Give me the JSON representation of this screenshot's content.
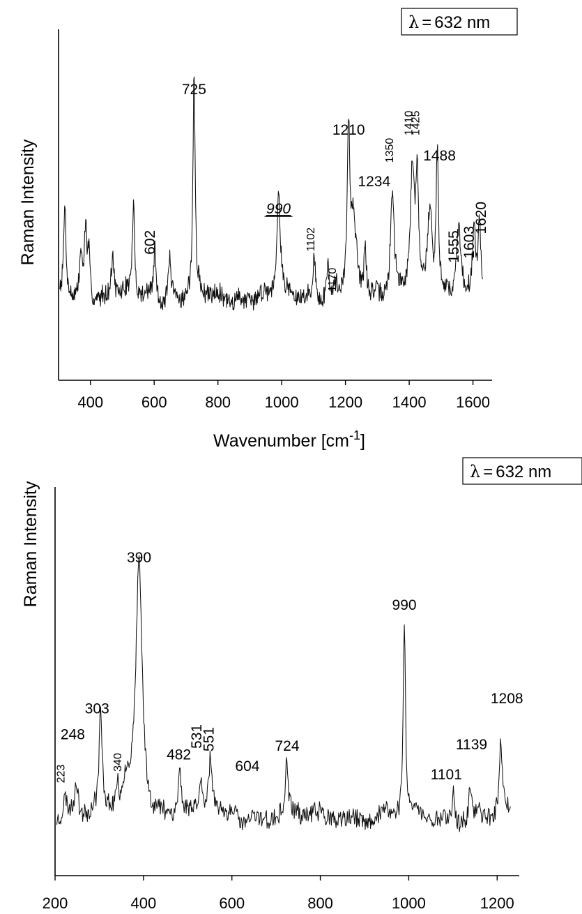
{
  "chart_data": [
    {
      "type": "line",
      "title": "",
      "ylabel": "Raman Intensity",
      "xlabel": "Wavenumber [cm",
      "xlabel_sup": "-1",
      "xlabel_close": "]",
      "xlim": [
        300,
        1660
      ],
      "ylim": [
        0,
        1
      ],
      "grid": false,
      "legend": "none",
      "x_ticks": [
        400,
        600,
        800,
        1000,
        1200,
        1400,
        1600
      ],
      "x_tick_labels": [
        "400",
        "600",
        "800",
        "1000",
        "1200",
        "1400",
        "1600"
      ],
      "box_label": {
        "lambda": "λ",
        "equals": "=",
        "value": "632 nm"
      },
      "baseline": 0.2,
      "noise": 0.04,
      "peaks": [
        {
          "x": 320,
          "h": 0.33,
          "w": 4
        },
        {
          "x": 370,
          "h": 0.14,
          "w": 4
        },
        {
          "x": 385,
          "h": 0.24,
          "w": 5
        },
        {
          "x": 395,
          "h": 0.15,
          "w": 4
        },
        {
          "x": 470,
          "h": 0.15,
          "w": 5
        },
        {
          "x": 535,
          "h": 0.31,
          "w": 4
        },
        {
          "x": 602,
          "h": 0.18,
          "w": 4
        },
        {
          "x": 648,
          "h": 0.14,
          "w": 4
        },
        {
          "x": 725,
          "h": 0.75,
          "w": 4
        },
        {
          "x": 990,
          "h": 0.37,
          "w": 6
        },
        {
          "x": 1102,
          "h": 0.18,
          "w": 4
        },
        {
          "x": 1145,
          "h": 0.11,
          "w": 4
        },
        {
          "x": 1170,
          "h": 0.04,
          "w": 4
        },
        {
          "x": 1210,
          "h": 0.58,
          "w": 5
        },
        {
          "x": 1224,
          "h": 0.22,
          "w": 6
        },
        {
          "x": 1234,
          "h": 0.1,
          "w": 6
        },
        {
          "x": 1262,
          "h": 0.17,
          "w": 4
        },
        {
          "x": 1347,
          "h": 0.38,
          "w": 7
        },
        {
          "x": 1410,
          "h": 0.45,
          "w": 8
        },
        {
          "x": 1425,
          "h": 0.39,
          "w": 4
        },
        {
          "x": 1465,
          "h": 0.29,
          "w": 8
        },
        {
          "x": 1488,
          "h": 0.48,
          "w": 4
        },
        {
          "x": 1555,
          "h": 0.27,
          "w": 8
        },
        {
          "x": 1603,
          "h": 0.25,
          "w": 5
        },
        {
          "x": 1620,
          "h": 0.26,
          "w": 6
        }
      ],
      "annotations": [
        {
          "text": "725",
          "x": 725,
          "y": 0.905,
          "rotate": 0,
          "size": "large",
          "underline": false,
          "italic": false
        },
        {
          "text": "602",
          "x": 602,
          "y": 0.39,
          "rotate": -90,
          "size": "large",
          "underline": false,
          "italic": false
        },
        {
          "text": "990",
          "x": 990,
          "y": 0.49,
          "rotate": 0,
          "size": "large",
          "underline": true,
          "italic": true
        },
        {
          "text": "1102",
          "x": 1102,
          "y": 0.4,
          "rotate": -90,
          "size": "small",
          "underline": false,
          "italic": false
        },
        {
          "text": "1170",
          "x": 1170,
          "y": 0.26,
          "rotate": -90,
          "size": "small",
          "underline": false,
          "italic": false
        },
        {
          "text": "1210",
          "x": 1210,
          "y": 0.765,
          "rotate": 0,
          "size": "large",
          "underline": false,
          "italic": false
        },
        {
          "text": "1234",
          "x": 1290,
          "y": 0.585,
          "rotate": 0,
          "size": "large",
          "underline": false,
          "italic": false
        },
        {
          "text": "1350",
          "x": 1350,
          "y": 0.71,
          "rotate": -90,
          "size": "small",
          "underline": false,
          "italic": false
        },
        {
          "text": "1410",
          "x": 1410,
          "y": 0.805,
          "rotate": -90,
          "size": "small",
          "underline": false,
          "italic": false
        },
        {
          "text": "1425",
          "x": 1432,
          "y": 0.805,
          "rotate": -90,
          "size": "small",
          "underline": false,
          "italic": false
        },
        {
          "text": "1488",
          "x": 1495,
          "y": 0.675,
          "rotate": 0,
          "size": "large",
          "underline": false,
          "italic": false
        },
        {
          "text": "1555",
          "x": 1555,
          "y": 0.375,
          "rotate": -90,
          "size": "large",
          "underline": false,
          "italic": false
        },
        {
          "text": "1603",
          "x": 1603,
          "y": 0.39,
          "rotate": -90,
          "size": "large",
          "underline": false,
          "italic": false
        },
        {
          "text": "1620",
          "x": 1640,
          "y": 0.475,
          "rotate": -90,
          "size": "large",
          "underline": false,
          "italic": false
        }
      ]
    },
    {
      "type": "line",
      "title": "",
      "ylabel": "Raman Intensity",
      "xlabel": "",
      "xlim": [
        200,
        1250
      ],
      "ylim": [
        0,
        1
      ],
      "grid": false,
      "legend": "none",
      "x_ticks": [
        200,
        400,
        600,
        800,
        1000,
        1200
      ],
      "x_tick_labels": [
        "200",
        "400",
        "600",
        "800",
        "1000",
        "1200"
      ],
      "box_label": {
        "lambda": "λ",
        "equals": "=",
        "value": "632 nm"
      },
      "baseline": 0.1,
      "noise": 0.04,
      "peaks": [
        {
          "x": 223,
          "h": 0.06,
          "w": 4
        },
        {
          "x": 248,
          "h": 0.12,
          "w": 4
        },
        {
          "x": 303,
          "h": 0.33,
          "w": 4
        },
        {
          "x": 340,
          "h": 0.08,
          "w": 4
        },
        {
          "x": 360,
          "h": 0.1,
          "w": 10
        },
        {
          "x": 390,
          "h": 0.88,
          "w": 9
        },
        {
          "x": 482,
          "h": 0.16,
          "w": 4
        },
        {
          "x": 531,
          "h": 0.1,
          "w": 4
        },
        {
          "x": 551,
          "h": 0.2,
          "w": 5
        },
        {
          "x": 604,
          "h": 0.05,
          "w": 4
        },
        {
          "x": 724,
          "h": 0.19,
          "w": 3
        },
        {
          "x": 990,
          "h": 0.68,
          "w": 3
        },
        {
          "x": 1101,
          "h": 0.1,
          "w": 3
        },
        {
          "x": 1139,
          "h": 0.12,
          "w": 3
        },
        {
          "x": 1208,
          "h": 0.26,
          "w": 4
        }
      ],
      "annotations": [
        {
          "text": "390",
          "x": 390,
          "y": 0.985,
          "rotate": 0,
          "size": "large",
          "underline": false,
          "italic": false
        },
        {
          "text": "303",
          "x": 295,
          "y": 0.46,
          "rotate": 0,
          "size": "large",
          "underline": false,
          "italic": false
        },
        {
          "text": "248",
          "x": 240,
          "y": 0.37,
          "rotate": 0,
          "size": "large",
          "underline": false,
          "italic": false
        },
        {
          "text": "223",
          "x": 221,
          "y": 0.25,
          "rotate": -90,
          "size": "small",
          "underline": false,
          "italic": false
        },
        {
          "text": "340",
          "x": 350,
          "y": 0.29,
          "rotate": -90,
          "size": "small",
          "underline": false,
          "italic": false
        },
        {
          "text": "482",
          "x": 480,
          "y": 0.3,
          "rotate": 0,
          "size": "large",
          "underline": false,
          "italic": false
        },
        {
          "text": "531",
          "x": 531,
          "y": 0.38,
          "rotate": -90,
          "size": "large",
          "underline": false,
          "italic": false
        },
        {
          "text": "551",
          "x": 559,
          "y": 0.37,
          "rotate": -90,
          "size": "large",
          "underline": false,
          "italic": false
        },
        {
          "text": "604",
          "x": 635,
          "y": 0.26,
          "rotate": 0,
          "size": "large",
          "underline": false,
          "italic": false
        },
        {
          "text": "724",
          "x": 725,
          "y": 0.33,
          "rotate": 0,
          "size": "large",
          "underline": false,
          "italic": false
        },
        {
          "text": "990",
          "x": 990,
          "y": 0.82,
          "rotate": 0,
          "size": "large",
          "underline": false,
          "italic": false
        },
        {
          "text": "1101",
          "x": 1085,
          "y": 0.23,
          "rotate": 0,
          "size": "large",
          "underline": false,
          "italic": false
        },
        {
          "text": "1139",
          "x": 1142,
          "y": 0.335,
          "rotate": 0,
          "size": "large",
          "underline": false,
          "italic": false
        },
        {
          "text": "1208",
          "x": 1222,
          "y": 0.495,
          "rotate": 0,
          "size": "large",
          "underline": false,
          "italic": false
        }
      ]
    }
  ]
}
